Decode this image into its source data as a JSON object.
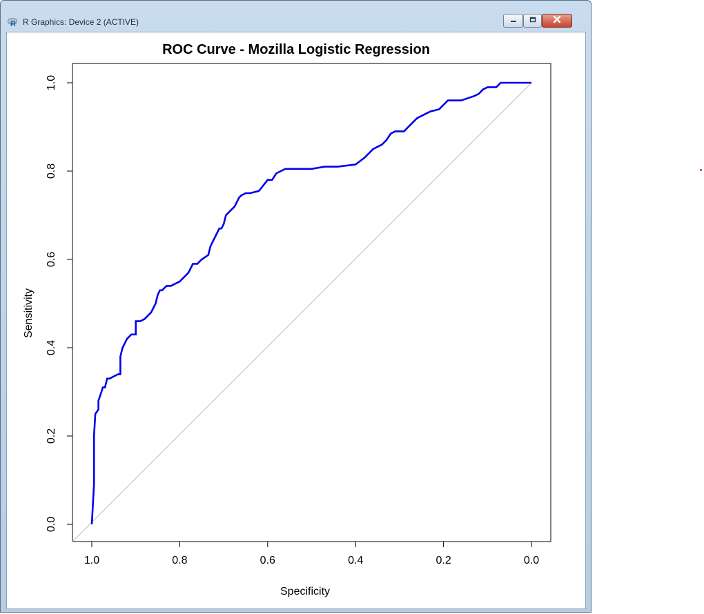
{
  "window": {
    "title": "R Graphics: Device 2 (ACTIVE)",
    "app_icon": "r-logo-icon",
    "controls": [
      {
        "name": "minimize",
        "icon": "minimize-icon"
      },
      {
        "name": "maximize",
        "icon": "maximize-icon"
      },
      {
        "name": "close",
        "icon": "close-icon"
      }
    ]
  },
  "chart_data": {
    "type": "line",
    "title": "ROC Curve - Mozilla Logistic Regression",
    "xlabel": "Specificity",
    "ylabel": "Sensitivity",
    "xlim": [
      1.0,
      0.0
    ],
    "ylim": [
      0.0,
      1.0
    ],
    "x_reversed": true,
    "x_ticks": [
      "1.0",
      "0.8",
      "0.6",
      "0.4",
      "0.2",
      "0.0"
    ],
    "y_ticks": [
      "0.0",
      "0.2",
      "0.4",
      "0.6",
      "0.8",
      "1.0"
    ],
    "grid": false,
    "series": [
      {
        "color": "#0000ee",
        "x": [
          1.0,
          0.995,
          0.995,
          0.992,
          0.992,
          0.985,
          0.985,
          0.978,
          0.975,
          0.97,
          0.965,
          0.96,
          0.96,
          0.94,
          0.935,
          0.935,
          0.93,
          0.925,
          0.92,
          0.91,
          0.9,
          0.9,
          0.89,
          0.88,
          0.865,
          0.855,
          0.85,
          0.845,
          0.84,
          0.83,
          0.82,
          0.8,
          0.79,
          0.78,
          0.77,
          0.76,
          0.75,
          0.735,
          0.73,
          0.72,
          0.71,
          0.705,
          0.7,
          0.695,
          0.685,
          0.675,
          0.67,
          0.665,
          0.66,
          0.65,
          0.64,
          0.62,
          0.6,
          0.59,
          0.58,
          0.57,
          0.56,
          0.54,
          0.5,
          0.47,
          0.44,
          0.4,
          0.38,
          0.37,
          0.36,
          0.35,
          0.34,
          0.33,
          0.32,
          0.31,
          0.29,
          0.28,
          0.27,
          0.26,
          0.24,
          0.23,
          0.21,
          0.2,
          0.19,
          0.18,
          0.16,
          0.13,
          0.12,
          0.11,
          0.1,
          0.08,
          0.07,
          0.05,
          0.0
        ],
        "y": [
          0.0,
          0.09,
          0.2,
          0.25,
          0.25,
          0.26,
          0.28,
          0.3,
          0.31,
          0.31,
          0.33,
          0.33,
          0.33,
          0.34,
          0.34,
          0.38,
          0.4,
          0.41,
          0.42,
          0.43,
          0.43,
          0.46,
          0.46,
          0.465,
          0.48,
          0.5,
          0.52,
          0.53,
          0.53,
          0.54,
          0.54,
          0.55,
          0.56,
          0.57,
          0.59,
          0.59,
          0.6,
          0.61,
          0.63,
          0.65,
          0.67,
          0.67,
          0.68,
          0.7,
          0.71,
          0.72,
          0.73,
          0.74,
          0.745,
          0.75,
          0.75,
          0.755,
          0.78,
          0.78,
          0.795,
          0.8,
          0.805,
          0.805,
          0.805,
          0.81,
          0.81,
          0.815,
          0.83,
          0.84,
          0.85,
          0.855,
          0.86,
          0.87,
          0.885,
          0.89,
          0.89,
          0.9,
          0.91,
          0.92,
          0.93,
          0.935,
          0.94,
          0.95,
          0.96,
          0.96,
          0.96,
          0.97,
          0.975,
          0.985,
          0.99,
          0.99,
          1.0,
          1.0,
          1.0
        ]
      },
      {
        "color": "#bfbfbf",
        "x": [
          1.05,
          0.0
        ],
        "y": [
          -0.05,
          1.0
        ]
      }
    ]
  },
  "decoration": {
    "stray_dot_color": "#d62b2b"
  }
}
